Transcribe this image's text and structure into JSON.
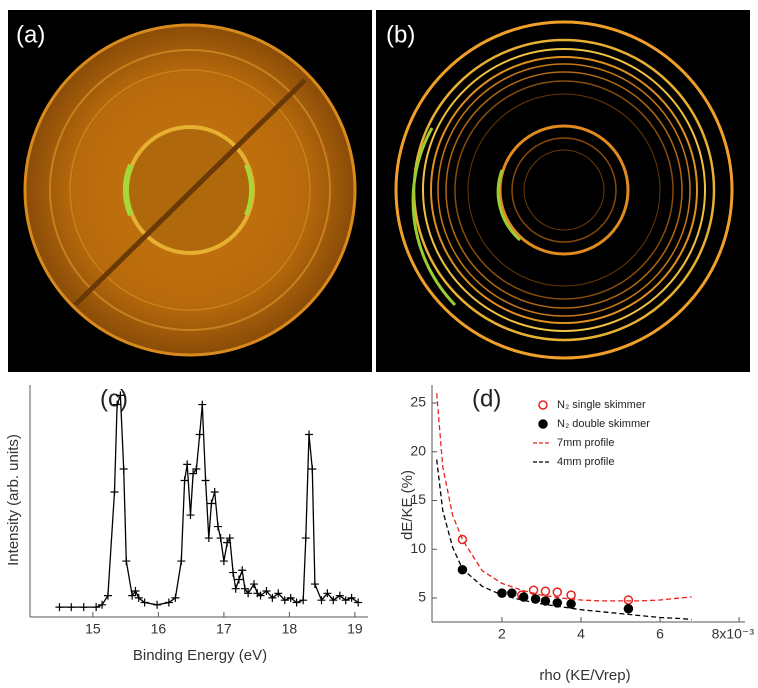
{
  "panels": [
    {
      "label": "(a)"
    },
    {
      "label": "(b)"
    }
  ],
  "chart_data": [
    {
      "type": "line",
      "title": "(c)",
      "x_label": "Binding Energy (eV)",
      "y_label": "Intensity (arb. units)",
      "x": [
        14.49,
        14.67,
        14.86,
        15.05,
        15.14,
        15.23,
        15.33,
        15.37,
        15.42,
        15.47,
        15.51,
        15.6,
        15.65,
        15.7,
        15.79,
        15.98,
        16.16,
        16.26,
        16.35,
        16.4,
        16.44,
        16.49,
        16.53,
        16.58,
        16.63,
        16.67,
        16.72,
        16.77,
        16.81,
        16.86,
        16.91,
        16.95,
        17.0,
        17.05,
        17.09,
        17.14,
        17.18,
        17.23,
        17.28,
        17.32,
        17.37,
        17.46,
        17.51,
        17.56,
        17.65,
        17.74,
        17.83,
        17.93,
        18.02,
        18.11,
        18.21,
        18.25,
        18.3,
        18.35,
        18.39,
        18.49,
        18.58,
        18.67,
        18.77,
        18.86,
        18.95,
        19.05
      ],
      "series": [
        {
          "color": "#000000",
          "marker": "plus",
          "values": [
            0,
            0,
            0,
            0,
            1,
            5,
            50,
            88,
            92,
            60,
            20,
            5,
            7,
            4,
            2,
            1,
            2,
            4,
            20,
            55,
            62,
            40,
            58,
            60,
            75,
            88,
            55,
            30,
            45,
            50,
            35,
            30,
            20,
            28,
            30,
            15,
            8,
            12,
            16,
            8,
            6,
            10,
            6,
            5,
            7,
            4,
            6,
            3,
            4,
            2,
            3,
            30,
            75,
            60,
            10,
            3,
            6,
            3,
            5,
            3,
            4,
            2
          ]
        }
      ],
      "xlim": [
        14.04,
        19.2
      ],
      "xticks": [
        15,
        16,
        17,
        18,
        19
      ],
      "ylim": [
        -4.3,
        96.5
      ]
    },
    {
      "type": "scatter",
      "title": "(d)",
      "x_label": "rho (KE/Vrep)",
      "y_label": "dE/KE (%)",
      "xlim": [
        0.23,
        8.15
      ],
      "xticks": [
        2,
        4,
        6,
        {
          "value": 8,
          "label": "8x10⁻³"
        }
      ],
      "ylim": [
        2.54,
        26.85
      ],
      "yticks": [
        5,
        10,
        15,
        20,
        25
      ],
      "legend": "upper-right",
      "series": [
        {
          "name": "N₂ single skimmer",
          "color": "#e8231f",
          "style": "open-circle",
          "x": [
            1.0,
            2.5,
            2.8,
            3.1,
            3.4,
            3.75,
            5.2
          ],
          "values": [
            11.0,
            5.3,
            5.8,
            5.7,
            5.6,
            5.3,
            4.8
          ]
        },
        {
          "name": "N₂ double skimmer",
          "color": "#000000",
          "style": "filled-circle",
          "x": [
            1.0,
            2.0,
            2.25,
            2.55,
            2.85,
            3.1,
            3.4,
            3.75,
            5.2
          ],
          "values": [
            7.9,
            5.5,
            5.5,
            5.1,
            4.9,
            4.7,
            4.5,
            4.4,
            3.9
          ]
        },
        {
          "name": "7mm profile",
          "color": "#e8231f",
          "style": "dashed",
          "x": [
            0.35,
            0.5,
            0.75,
            1,
            1.5,
            2,
            2.5,
            3,
            3.5,
            4,
            4.5,
            5,
            5.5,
            6,
            6.5,
            6.8
          ],
          "values": [
            26,
            18.5,
            13.5,
            11,
            7.8,
            6.5,
            5.8,
            5.3,
            5.0,
            4.8,
            4.7,
            4.7,
            4.7,
            4.8,
            5.0,
            5.1
          ]
        },
        {
          "name": "4mm profile",
          "color": "#000000",
          "style": "dashed",
          "x": [
            0.35,
            0.5,
            0.75,
            1,
            1.5,
            2,
            2.5,
            3,
            3.5,
            4,
            4.5,
            5,
            5.5,
            6,
            6.5,
            6.8
          ],
          "values": [
            19.2,
            14,
            10.2,
            8,
            6.2,
            5.3,
            4.8,
            4.4,
            4.1,
            3.8,
            3.6,
            3.4,
            3.2,
            3.0,
            2.9,
            2.8
          ]
        }
      ]
    }
  ]
}
